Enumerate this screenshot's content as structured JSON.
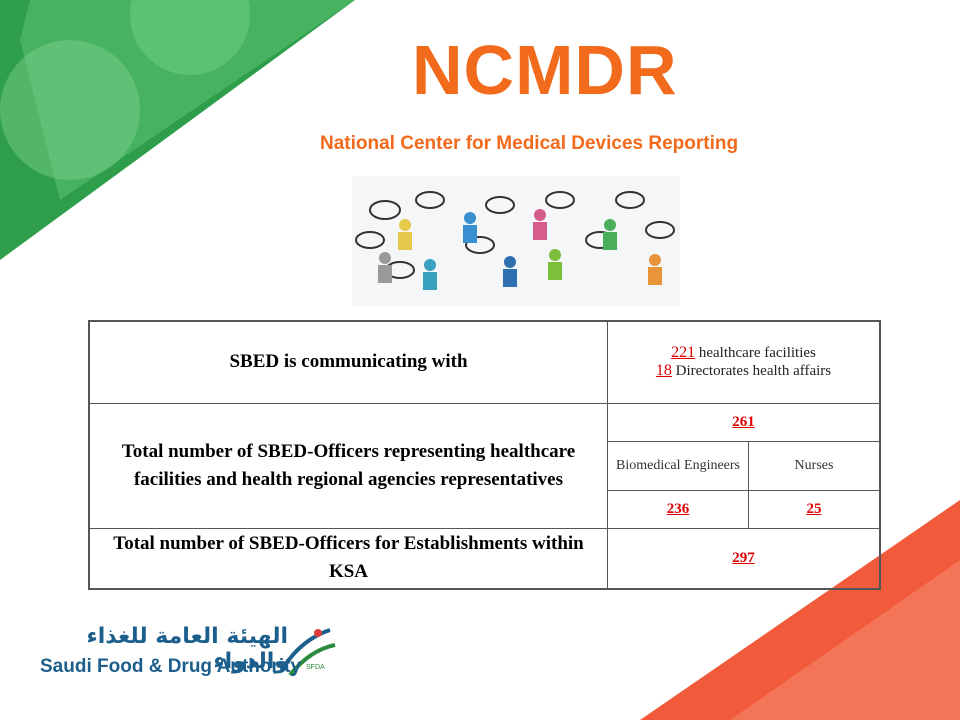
{
  "header": {
    "title": "NCMDR",
    "subtitle": "National Center for Medical Devices Reporting"
  },
  "table": {
    "rows": [
      {
        "label": "SBED is communicating with",
        "items": [
          {
            "count": 221,
            "text": "healthcare facilities"
          },
          {
            "count": 18,
            "text": "Directorates health affairs"
          }
        ]
      },
      {
        "label": "Total number of SBED-Officers  representing healthcare facilities and health regional agencies representatives",
        "total": 261,
        "breakdown": [
          {
            "name": "Biomedical Engineers",
            "count": 236
          },
          {
            "name": "Nurses",
            "count": 25
          }
        ]
      },
      {
        "label": "Total number of SBED-Officers for Establishments within KSA",
        "total": 297
      }
    ]
  },
  "logo": {
    "arabic": "الهيئة العامة للغذاء والدواء",
    "english": "Saudi Food & Drug Authority",
    "mark": "SFDA"
  }
}
